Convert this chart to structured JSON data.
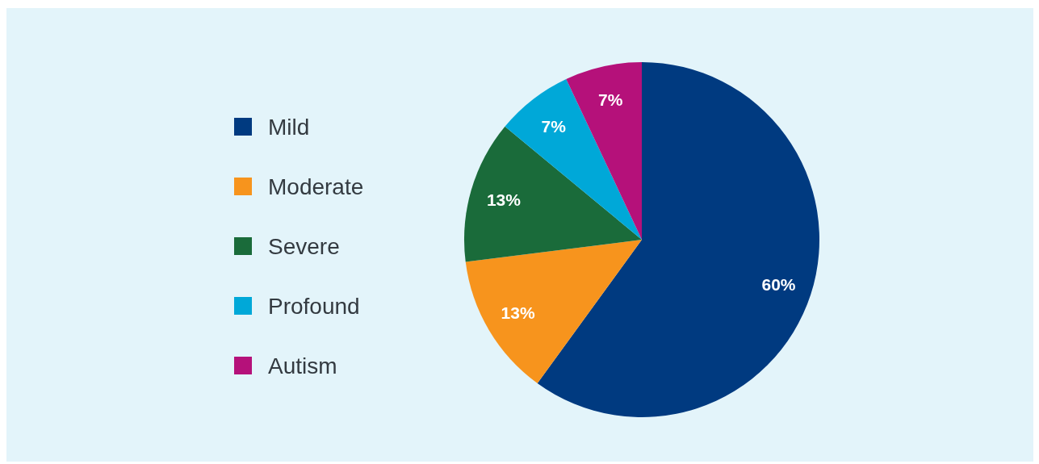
{
  "chart_data": {
    "type": "pie",
    "categories": [
      "Mild",
      "Moderate",
      "Severe",
      "Profound",
      "Autism"
    ],
    "values": [
      60,
      13,
      13,
      7,
      7
    ],
    "colors": [
      "#003a80",
      "#f7941d",
      "#1a6b3a",
      "#00a8d8",
      "#b5117a"
    ],
    "value_labels": [
      "60%",
      "13%",
      "13%",
      "7%",
      "7%"
    ],
    "legend": "left"
  }
}
